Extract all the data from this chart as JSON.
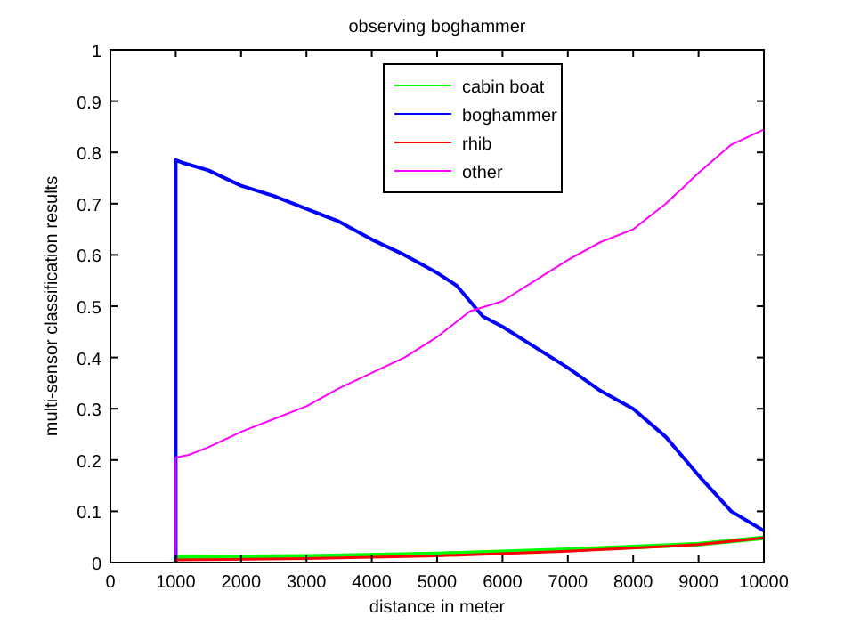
{
  "chart_data": {
    "type": "line",
    "title": "observing boghammer",
    "xlabel": "distance in meter",
    "ylabel": "multi-sensor classification results",
    "xlim": [
      0,
      10000
    ],
    "xticks": [
      0,
      1000,
      2000,
      3000,
      4000,
      5000,
      6000,
      7000,
      8000,
      9000,
      10000
    ],
    "ylim": [
      0,
      1
    ],
    "yticks": [
      0,
      0.1,
      0.2,
      0.3,
      0.4,
      0.5,
      0.6,
      0.7,
      0.8,
      0.9,
      1
    ],
    "grid": false,
    "legend": "top",
    "series": [
      {
        "name": "cabin boat",
        "color": "#00ff00",
        "x": [
          1000,
          1000,
          3000,
          5000,
          7000,
          9000,
          10000
        ],
        "values": [
          0,
          0.01,
          0.012,
          0.017,
          0.025,
          0.036,
          0.048
        ]
      },
      {
        "name": "boghammer",
        "color": "#0000ff",
        "x": [
          1000,
          1000,
          1100,
          1500,
          2000,
          2500,
          3000,
          3500,
          4000,
          4500,
          5000,
          5300,
          5700,
          6000,
          6500,
          7000,
          7500,
          8000,
          8500,
          9000,
          9500,
          10000
        ],
        "values": [
          0,
          0.785,
          0.78,
          0.765,
          0.735,
          0.715,
          0.69,
          0.665,
          0.63,
          0.6,
          0.565,
          0.54,
          0.48,
          0.46,
          0.42,
          0.38,
          0.335,
          0.3,
          0.245,
          0.17,
          0.1,
          0.062
        ]
      },
      {
        "name": "rhib",
        "color": "#ff0000",
        "x": [
          1000,
          1000,
          3000,
          5000,
          7000,
          9000,
          10000
        ],
        "values": [
          0,
          0.005,
          0.008,
          0.013,
          0.022,
          0.035,
          0.048
        ]
      },
      {
        "name": "other",
        "color": "#ff00ff",
        "x": [
          1000,
          1000,
          1200,
          1500,
          2000,
          2500,
          3000,
          3500,
          4000,
          4500,
          5000,
          5500,
          6000,
          6500,
          7000,
          7500,
          8000,
          8500,
          9000,
          9500,
          10000
        ],
        "values": [
          0,
          0.205,
          0.21,
          0.225,
          0.255,
          0.28,
          0.305,
          0.34,
          0.37,
          0.4,
          0.44,
          0.49,
          0.51,
          0.55,
          0.59,
          0.625,
          0.65,
          0.7,
          0.76,
          0.815,
          0.845
        ]
      }
    ]
  }
}
